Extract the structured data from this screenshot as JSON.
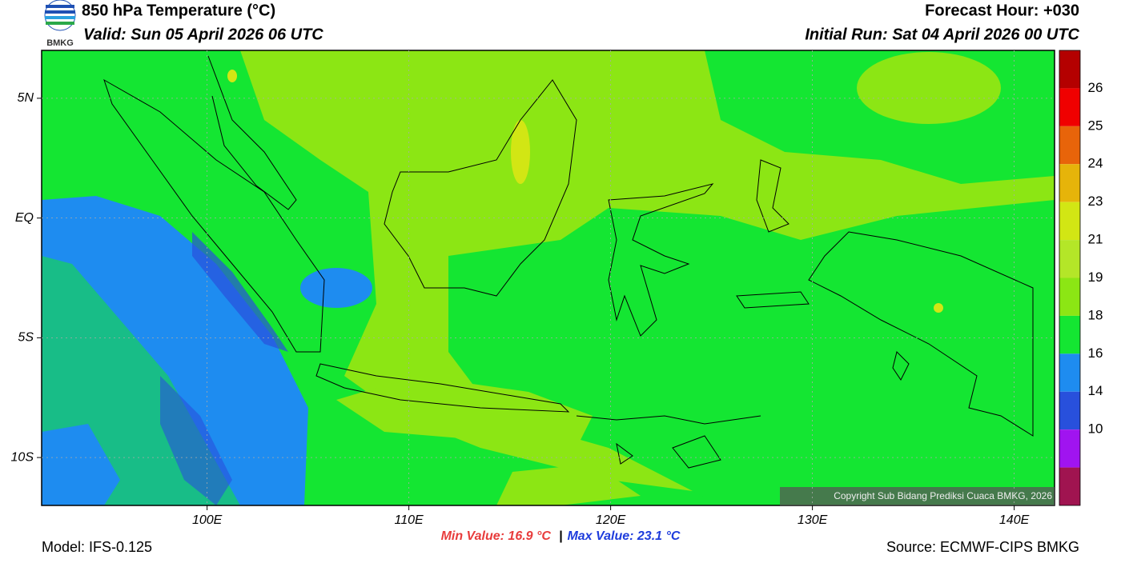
{
  "header": {
    "title": "850 hPa Temperature (°C)",
    "valid": "Valid: Sun 05 April 2026 06 UTC",
    "forecast_hour": "Forecast Hour: +030",
    "initial_run": "Initial Run: Sat 04 April 2026 00 UTC",
    "logo_text": "BMKG"
  },
  "map": {
    "lon_range": [
      91.8,
      142
    ],
    "lat_range": [
      -12,
      7
    ],
    "lon_ticks": [
      {
        "value": 100,
        "label": "100E"
      },
      {
        "value": 110,
        "label": "110E"
      },
      {
        "value": 120,
        "label": "120E"
      },
      {
        "value": 130,
        "label": "130E"
      },
      {
        "value": 140,
        "label": "140E"
      }
    ],
    "lat_ticks": [
      {
        "value": 5,
        "label": "5N"
      },
      {
        "value": 0,
        "label": "EQ"
      },
      {
        "value": -5,
        "label": "5S"
      },
      {
        "value": -10,
        "label": "10S"
      }
    ],
    "grid": true,
    "copyright": "Copyright Sub Bidang Prediksi Cuaca BMKG, 2026"
  },
  "colorbar": {
    "labels": [
      26,
      25,
      24,
      23,
      21,
      19,
      18,
      16,
      14,
      10
    ],
    "colors": [
      "#b40000",
      "#f00000",
      "#e8640a",
      "#e6b40a",
      "#d2e614",
      "#b4e628",
      "#8ce614",
      "#14e632",
      "#1e8cf0",
      "#2850dc",
      "#a014f0",
      "#a01450"
    ]
  },
  "footer": {
    "min_value": "Min Value: 16.9 °C",
    "separator": "|",
    "max_value": "Max Value: 23.1 °C",
    "model": "Model: IFS-0.125",
    "source": "Source: ECMWF-CIPS BMKG"
  }
}
